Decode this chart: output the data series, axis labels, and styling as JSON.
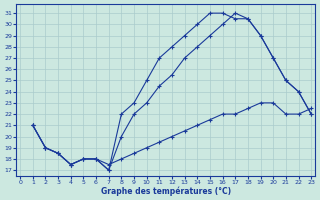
{
  "title": "Graphe des températures (°C)",
  "bg_color": "#cce8e0",
  "line_color": "#1a3a9a",
  "grid_color": "#aacccc",
  "xlim": [
    -0.3,
    23.3
  ],
  "ylim": [
    16.5,
    31.8
  ],
  "xticks": [
    0,
    1,
    2,
    3,
    4,
    5,
    6,
    7,
    8,
    9,
    10,
    11,
    12,
    13,
    14,
    15,
    16,
    17,
    18,
    19,
    20,
    21,
    22,
    23
  ],
  "yticks": [
    17,
    18,
    19,
    20,
    21,
    22,
    23,
    24,
    25,
    26,
    27,
    28,
    29,
    30,
    31
  ],
  "line1_x": [
    1,
    2,
    3,
    4,
    5,
    6,
    7,
    8,
    9,
    10,
    11,
    12,
    13,
    14,
    15,
    16,
    17,
    18,
    19,
    20,
    21,
    22,
    23
  ],
  "line1_y": [
    21,
    19,
    18.5,
    17.5,
    18,
    18,
    17,
    22,
    23,
    25,
    27,
    28,
    29,
    30,
    31,
    31,
    30.5,
    30.5,
    29,
    27,
    25,
    24,
    22
  ],
  "line2_x": [
    1,
    2,
    3,
    4,
    5,
    6,
    7,
    8,
    9,
    10,
    11,
    12,
    13,
    14,
    15,
    16,
    17,
    18,
    19,
    20,
    21,
    22,
    23
  ],
  "line2_y": [
    21,
    19,
    18.5,
    17.5,
    18,
    18,
    17,
    20,
    22,
    23,
    24.5,
    25.5,
    27,
    28,
    29,
    30,
    31,
    30.5,
    29,
    27,
    25,
    24,
    22
  ],
  "line3_x": [
    1,
    2,
    3,
    4,
    5,
    6,
    7,
    8,
    9,
    10,
    11,
    12,
    13,
    14,
    15,
    16,
    17,
    18,
    19,
    20,
    21,
    22,
    23
  ],
  "line3_y": [
    21,
    19,
    18.5,
    17.5,
    18,
    18,
    17.5,
    18,
    18.5,
    19,
    19.5,
    20,
    20.5,
    21,
    21.5,
    22,
    22,
    22.5,
    23,
    23,
    22,
    22,
    22.5
  ]
}
